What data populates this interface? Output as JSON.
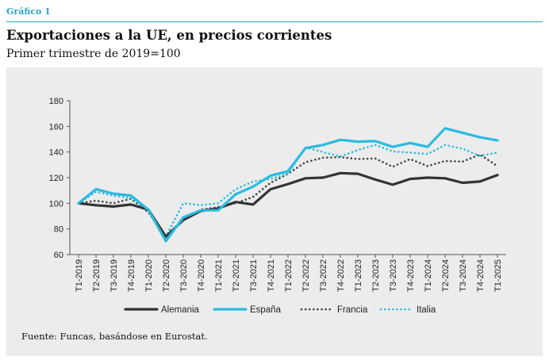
{
  "header": {
    "figure_label": "Gráfico 1",
    "title": "Exportaciones a la UE, en precios corrientes",
    "subtitle": "Primer trimestre de 2019=100"
  },
  "footer": {
    "source": "Fuente: Funcas, basándose en Eurostat."
  },
  "colors": {
    "accent": "#2aa5c8",
    "panel": "#ececec"
  },
  "chart_data": {
    "type": "line",
    "title": "Exportaciones a la UE, en precios corrientes",
    "subtitle": "Primer trimestre de 2019=100",
    "ylim": [
      60,
      180
    ],
    "yticks": [
      60,
      80,
      100,
      120,
      140,
      160,
      180
    ],
    "grid": false,
    "legend_position": "bottom",
    "categories": [
      "T1-2019",
      "T2-2019",
      "T3-2019",
      "T4-2019",
      "T1-2020",
      "T2-2020",
      "T3-2020",
      "T4-2020",
      "T1-2021",
      "T2-2021",
      "T3-2021",
      "T4-2021",
      "T1-2022",
      "T2-2022",
      "T3-2022",
      "T4-2022",
      "T1-2023",
      "T2-2023",
      "T3-2023",
      "T4-2023",
      "T1-2024",
      "T2-2024",
      "T3-2024",
      "T4-2024",
      "T1-2025"
    ],
    "series": [
      {
        "name": "Alemania",
        "color": "#333333",
        "style": "solid-thick",
        "values": [
          100,
          98.5,
          97.5,
          99,
          95,
          74,
          87,
          94,
          96,
          101,
          99,
          111,
          115,
          119.5,
          120,
          123.5,
          123,
          118.5,
          114.5,
          119,
          120,
          119.5,
          116,
          117,
          122
        ]
      },
      {
        "name": "España",
        "color": "#2abbe0",
        "style": "solid-thick",
        "values": [
          100,
          111,
          107.5,
          106,
          95,
          70.5,
          89,
          94.5,
          94.5,
          107,
          113,
          121.5,
          125,
          143,
          145.5,
          149.5,
          148,
          148.5,
          144,
          147,
          144,
          158.5,
          155,
          151.5,
          149
        ]
      },
      {
        "name": "Francia",
        "color": "#444444",
        "style": "dotted",
        "values": [
          100,
          102,
          100,
          103.5,
          93,
          73,
          88,
          95,
          97,
          100,
          105,
          116,
          123,
          132,
          135.5,
          136,
          134.5,
          135,
          128.5,
          134.5,
          129,
          133,
          132.5,
          138,
          129
        ]
      },
      {
        "name": "Italia",
        "color": "#2abbe0",
        "style": "dotted",
        "values": [
          100,
          109,
          106,
          104,
          95,
          74,
          100,
          98.5,
          100,
          111,
          117,
          119,
          123,
          143.5,
          140,
          136.5,
          141.5,
          145.5,
          140.5,
          139.5,
          138.5,
          145.5,
          142.5,
          137,
          139.5
        ]
      }
    ]
  }
}
